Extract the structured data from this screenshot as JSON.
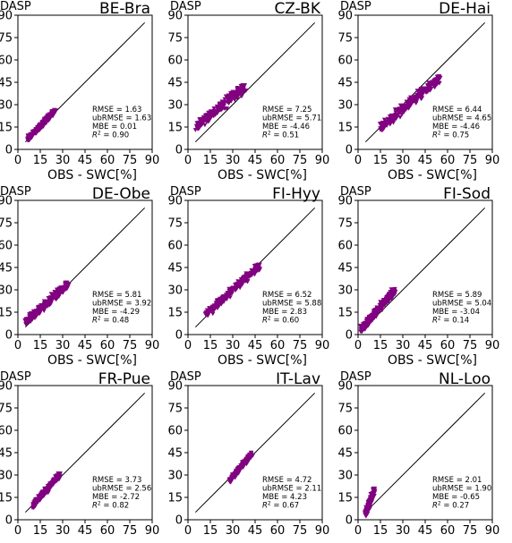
{
  "figure": {
    "xlabel": "OBS - SWC[%]",
    "ylabel": "DASP",
    "ticks": [
      0,
      15,
      30,
      45,
      60,
      75,
      90
    ],
    "marker_color": "#800080"
  },
  "chart_data": [
    {
      "type": "scatter",
      "title": "BE-Bra",
      "xlim": [
        0,
        90
      ],
      "ylim": [
        0,
        90
      ],
      "ticks": [
        0,
        15,
        30,
        45,
        60,
        75,
        90
      ],
      "cloud": {
        "x_range": [
          7,
          25
        ],
        "y_range": [
          7,
          26
        ],
        "spread": 2.5
      },
      "stats": {
        "rmse": "RMSE = 1.63",
        "ubrmse": "ubRMSE = 1.63",
        "mbe": "MBE = 0.01",
        "r2": "R^2 = 0.90"
      }
    },
    {
      "type": "scatter",
      "title": "CZ-BK",
      "xlim": [
        0,
        90
      ],
      "ylim": [
        0,
        90
      ],
      "ticks": [
        0,
        15,
        30,
        45,
        60,
        75,
        90
      ],
      "cloud": {
        "x_range": [
          5,
          38
        ],
        "y_range": [
          14,
          42
        ],
        "spread": 5
      },
      "stats": {
        "rmse": "RMSE = 7.25",
        "ubrmse": "ubRMSE = 5.71",
        "mbe": "MBE = -4.46",
        "r2": "R^2 = 0.51"
      }
    },
    {
      "type": "scatter",
      "title": "DE-Hai",
      "xlim": [
        0,
        90
      ],
      "ylim": [
        0,
        90
      ],
      "ticks": [
        0,
        15,
        30,
        45,
        60,
        75,
        90
      ],
      "cloud": {
        "x_range": [
          15,
          55
        ],
        "y_range": [
          14,
          48
        ],
        "spread": 5
      },
      "stats": {
        "rmse": "RMSE = 6.44",
        "ubrmse": "ubRMSE = 4.65",
        "mbe": "MBE = -4.46",
        "r2": "R^2 = 0.75"
      }
    },
    {
      "type": "scatter",
      "title": "DE-Obe",
      "xlim": [
        0,
        90
      ],
      "ylim": [
        0,
        90
      ],
      "ticks": [
        0,
        15,
        30,
        45,
        60,
        75,
        90
      ],
      "cloud": {
        "x_range": [
          5,
          34
        ],
        "y_range": [
          8,
          34
        ],
        "spread": 4
      },
      "stats": {
        "rmse": "RMSE = 5.81",
        "ubrmse": "ubRMSE = 3.92",
        "mbe": "MBE = -4.29",
        "r2": "R^2 = 0.48"
      }
    },
    {
      "type": "scatter",
      "title": "FI-Hyy",
      "xlim": [
        0,
        90
      ],
      "ylim": [
        0,
        90
      ],
      "ticks": [
        0,
        15,
        30,
        45,
        60,
        75,
        90
      ],
      "cloud": {
        "x_range": [
          12,
          48
        ],
        "y_range": [
          13,
          46
        ],
        "spread": 4
      },
      "stats": {
        "rmse": "RMSE = 6.52",
        "ubrmse": "ubRMSE = 5.88",
        "mbe": "MBE = 2.83",
        "r2": "R^2 = 0.60"
      }
    },
    {
      "type": "scatter",
      "title": "FI-Sod",
      "xlim": [
        0,
        90
      ],
      "ylim": [
        0,
        90
      ],
      "ticks": [
        0,
        15,
        30,
        45,
        60,
        75,
        90
      ],
      "cloud": {
        "x_range": [
          2,
          25
        ],
        "y_range": [
          3,
          30
        ],
        "spread": 4
      },
      "stats": {
        "rmse": "RMSE = 5.89",
        "ubrmse": "ubRMSE = 5.04",
        "mbe": "MBE = -3.04",
        "r2": "R^2 = 0.14"
      }
    },
    {
      "type": "scatter",
      "title": "FR-Pue",
      "xlim": [
        0,
        90
      ],
      "ylim": [
        0,
        90
      ],
      "ticks": [
        0,
        15,
        30,
        45,
        60,
        75,
        90
      ],
      "cloud": {
        "x_range": [
          10,
          28
        ],
        "y_range": [
          9,
          30
        ],
        "spread": 3
      },
      "stats": {
        "rmse": "RMSE = 3.73",
        "ubrmse": "ubRMSE = 2.56",
        "mbe": "MBE = -2.72",
        "r2": "R^2 = 0.82"
      }
    },
    {
      "type": "scatter",
      "title": "IT-Lav",
      "xlim": [
        0,
        90
      ],
      "ylim": [
        0,
        90
      ],
      "ticks": [
        0,
        15,
        30,
        45,
        60,
        75,
        90
      ],
      "cloud": {
        "x_range": [
          28,
          43
        ],
        "y_range": [
          26,
          44
        ],
        "spread": 2.5
      },
      "stats": {
        "rmse": "RMSE = 4.72",
        "ubrmse": "ubRMSE = 2.11",
        "mbe": "MBE = 4.23",
        "r2": "R^2 = 0.67"
      }
    },
    {
      "type": "scatter",
      "title": "NL-Loo",
      "xlim": [
        0,
        90
      ],
      "ylim": [
        0,
        90
      ],
      "ticks": [
        0,
        15,
        30,
        45,
        60,
        75,
        90
      ],
      "cloud": {
        "x_range": [
          5,
          11
        ],
        "y_range": [
          3,
          20
        ],
        "spread": 3
      },
      "stats": {
        "rmse": "RMSE = 2.01",
        "ubrmse": "ubRMSE = 1.90",
        "mbe": "MBE = -0.65",
        "r2": "R^2 = 0.27"
      }
    }
  ]
}
